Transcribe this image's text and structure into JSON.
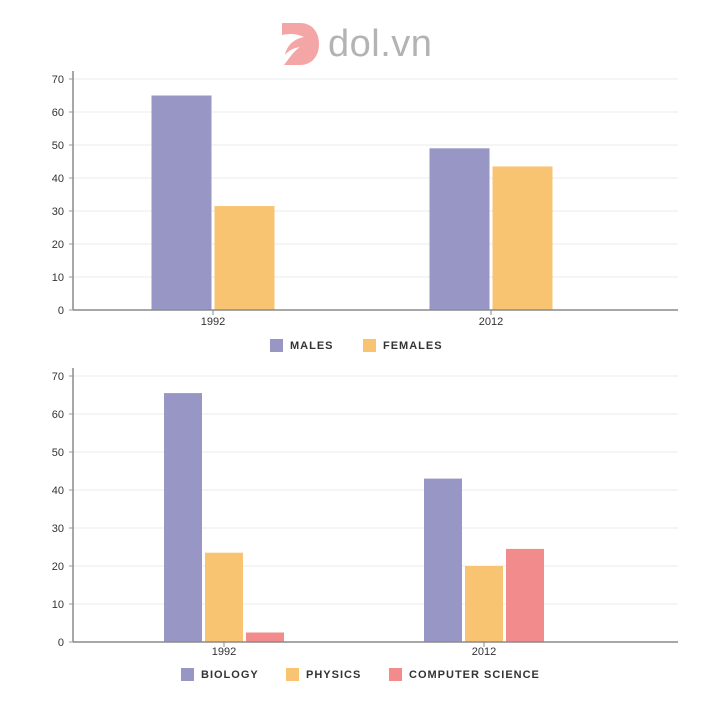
{
  "logo": {
    "text": "dol.vn",
    "mark_color": "#f4a5a5"
  },
  "chart_data": [
    {
      "type": "bar",
      "categories": [
        "1992",
        "2012"
      ],
      "series": [
        {
          "name": "MALES",
          "values": [
            65,
            49
          ],
          "color": "#9896c4"
        },
        {
          "name": "FEMALES",
          "values": [
            31.5,
            43.5
          ],
          "color": "#f8c471"
        }
      ],
      "ylim": [
        0,
        70
      ],
      "yticks": [
        0,
        10,
        20,
        30,
        40,
        50,
        60,
        70
      ],
      "title": "",
      "xlabel": "",
      "ylabel": "",
      "grid": true,
      "legend_position": "bottom-center"
    },
    {
      "type": "bar",
      "categories": [
        "1992",
        "2012"
      ],
      "series": [
        {
          "name": "BIOLOGY",
          "values": [
            65.5,
            43
          ],
          "color": "#9896c4"
        },
        {
          "name": "PHYSICS",
          "values": [
            23.5,
            20
          ],
          "color": "#f8c471"
        },
        {
          "name": "COMPUTER SCIENCE",
          "values": [
            2.5,
            24.5
          ],
          "color": "#f28b8b"
        }
      ],
      "ylim": [
        0,
        70
      ],
      "yticks": [
        0,
        10,
        20,
        30,
        40,
        50,
        60,
        70
      ],
      "title": "",
      "xlabel": "",
      "ylabel": "",
      "grid": true,
      "legend_position": "bottom-center"
    }
  ]
}
